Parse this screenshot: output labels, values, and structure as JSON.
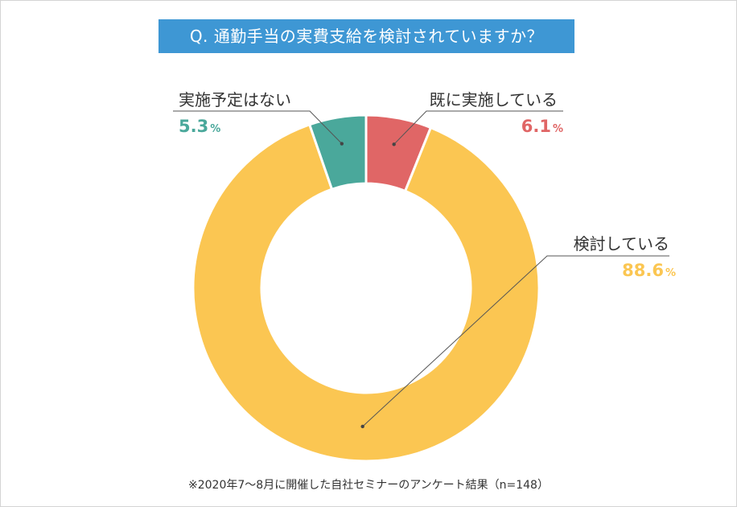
{
  "question": "Q. 通勤手当の実費支給を検討されていますか？",
  "footnote": "※2020年7～8月に開催した自社セミナーのアンケート結果（n=148）",
  "colors": {
    "header": "#3e97d4",
    "implemented": "#e06666",
    "considering": "#fbc652",
    "no_plan": "#4aa89b"
  },
  "chart_data": {
    "type": "pie",
    "donut": true,
    "unit": "%",
    "slices": [
      {
        "label": "既に実施している",
        "value": 6.1,
        "display": "6.1",
        "color": "#e06666"
      },
      {
        "label": "検討している",
        "value": 88.6,
        "display": "88.6",
        "color": "#fbc652"
      },
      {
        "label": "実施予定はない",
        "value": 5.3,
        "display": "5.3",
        "color": "#4aa89b"
      }
    ]
  }
}
